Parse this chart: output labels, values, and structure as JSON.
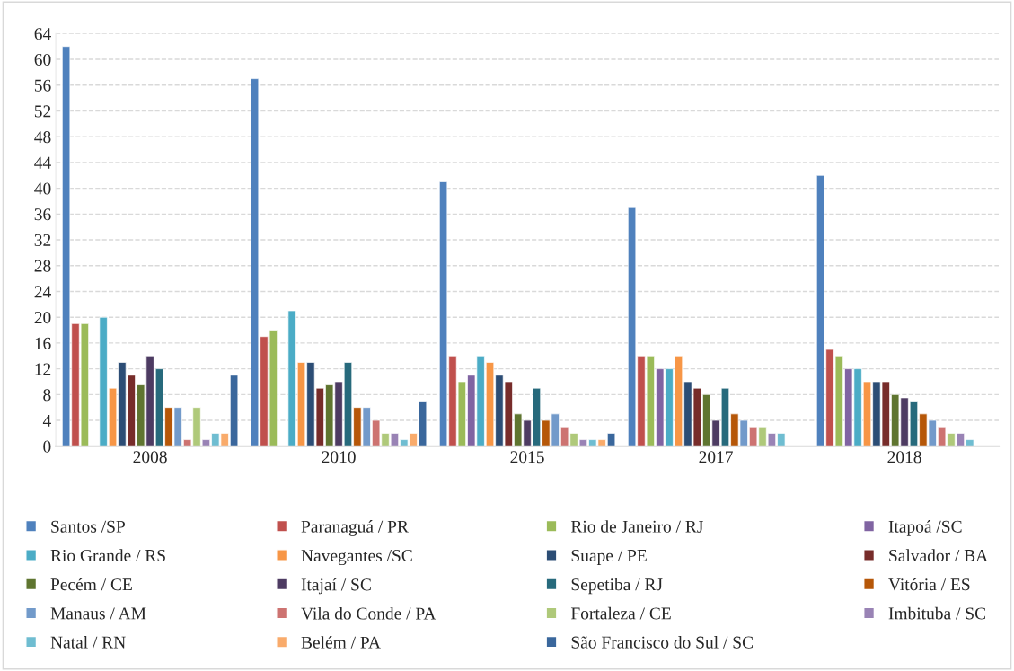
{
  "chart_data": {
    "type": "bar",
    "categories": [
      "2008",
      "2010",
      "2015",
      "2017",
      "2018"
    ],
    "ylim": [
      0,
      64
    ],
    "yticks": [
      0,
      4,
      8,
      12,
      16,
      20,
      24,
      28,
      32,
      36,
      40,
      44,
      48,
      52,
      56,
      60,
      64
    ],
    "grid": "y",
    "legend": "bottom",
    "series": [
      {
        "name": "Santos /SP",
        "color": "#4f81bd",
        "values": [
          62,
          57,
          41,
          37,
          42
        ]
      },
      {
        "name": "Paranaguá / PR",
        "color": "#c0504d",
        "values": [
          19,
          17,
          14,
          14,
          15
        ]
      },
      {
        "name": "Rio de Janeiro / RJ",
        "color": "#9bbb59",
        "values": [
          19,
          18,
          10,
          14,
          14
        ]
      },
      {
        "name": "Itapoá /SC",
        "color": "#8064a2",
        "values": [
          null,
          null,
          11,
          12,
          12
        ]
      },
      {
        "name": "Rio Grande / RS",
        "color": "#4bacc6",
        "values": [
          20,
          21,
          14,
          12,
          12
        ]
      },
      {
        "name": "Navegantes /SC",
        "color": "#f79646",
        "values": [
          9,
          13,
          13,
          14,
          10
        ]
      },
      {
        "name": "Suape / PE",
        "color": "#2c4d75",
        "values": [
          13,
          13,
          11,
          10,
          10
        ]
      },
      {
        "name": "Salvador / BA",
        "color": "#772c2a",
        "values": [
          11,
          9,
          10,
          9,
          10
        ]
      },
      {
        "name": "Pecém / CE",
        "color": "#5f7530",
        "values": [
          9.5,
          9.5,
          5,
          8,
          8
        ]
      },
      {
        "name": "Itajaí / SC",
        "color": "#4d3b62",
        "values": [
          14,
          10,
          4,
          4,
          7.5
        ]
      },
      {
        "name": "Sepetiba / RJ",
        "color": "#276a7c",
        "values": [
          12,
          13,
          9,
          9,
          7
        ]
      },
      {
        "name": "Vitória / ES",
        "color": "#b65708",
        "values": [
          6,
          6,
          4,
          5,
          5
        ]
      },
      {
        "name": "Manaus / AM",
        "color": "#729aca",
        "values": [
          6,
          6,
          5,
          4,
          4
        ]
      },
      {
        "name": "Vila do Conde / PA",
        "color": "#cd7371",
        "values": [
          1,
          4,
          3,
          3,
          3
        ]
      },
      {
        "name": "Fortaleza / CE",
        "color": "#afc97a",
        "values": [
          6,
          2,
          2,
          3,
          2
        ]
      },
      {
        "name": "Imbituba / SC",
        "color": "#9983b5",
        "values": [
          1,
          2,
          1,
          2,
          2
        ]
      },
      {
        "name": "Natal / RN",
        "color": "#6fbdd1",
        "values": [
          2,
          1,
          1,
          2,
          1
        ]
      },
      {
        "name": "Belém / PA",
        "color": "#f9ab6b",
        "values": [
          2,
          2,
          1,
          null,
          null
        ]
      },
      {
        "name": "São Francisco do Sul / SC",
        "color": "#3a679c",
        "values": [
          11,
          7,
          2,
          null,
          null
        ]
      }
    ]
  }
}
